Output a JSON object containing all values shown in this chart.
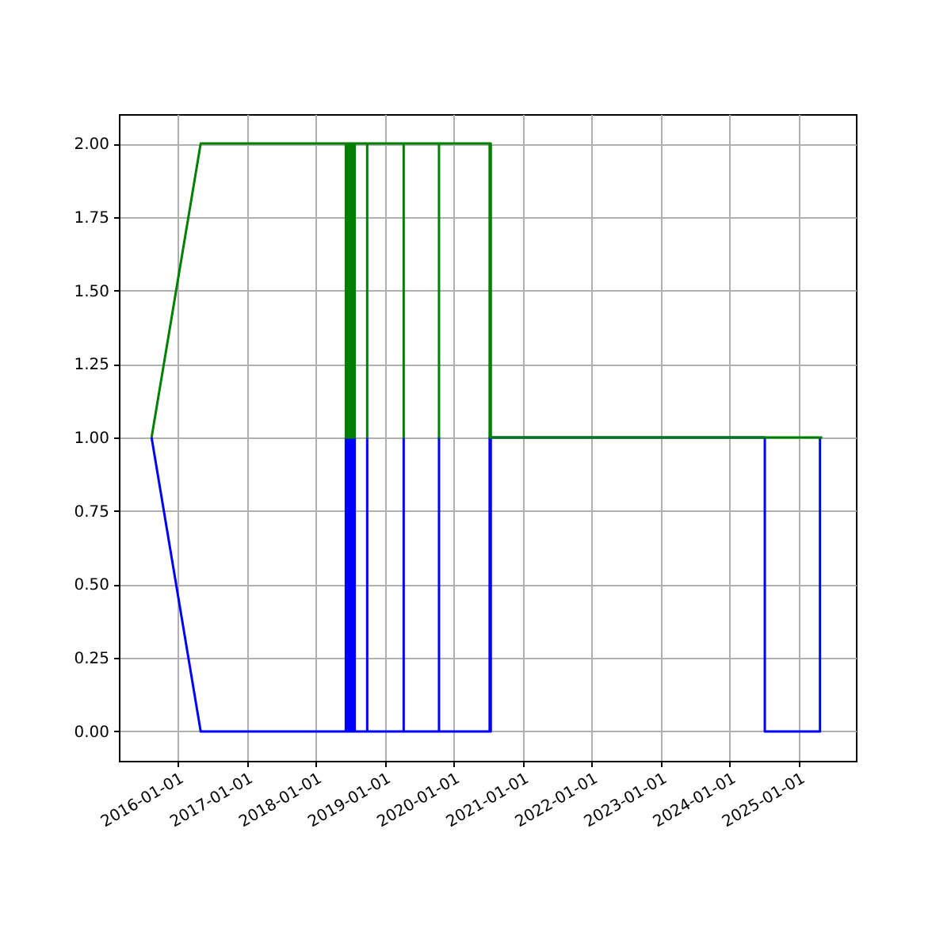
{
  "chart_data": {
    "type": "line",
    "xlim": [
      "2015-02-25",
      "2025-10-30"
    ],
    "ylim": [
      -0.1,
      2.1
    ],
    "xticks": [
      "2016-01-01",
      "2017-01-01",
      "2018-01-01",
      "2019-01-01",
      "2020-01-01",
      "2021-01-01",
      "2022-01-01",
      "2023-01-01",
      "2024-01-01",
      "2025-01-01"
    ],
    "yticks": [
      {
        "value": 0,
        "label": "0.00"
      },
      {
        "value": 0.25,
        "label": "0.25"
      },
      {
        "value": 0.5,
        "label": "0.50"
      },
      {
        "value": 0.75,
        "label": "0.75"
      },
      {
        "value": 1,
        "label": "1.00"
      },
      {
        "value": 1.25,
        "label": "1.25"
      },
      {
        "value": 1.5,
        "label": "1.50"
      },
      {
        "value": 1.75,
        "label": "1.75"
      },
      {
        "value": 2,
        "label": "2.00"
      }
    ],
    "grid": true,
    "series": [
      {
        "color": "#0000ff",
        "x": [
          "2015-08-17",
          "2016-05-03",
          "2018-06-10",
          "2018-06-10",
          "2018-06-10",
          "2018-06-17",
          "2018-06-17",
          "2018-06-17",
          "2018-06-24",
          "2018-06-24",
          "2018-06-24",
          "2018-07-01",
          "2018-07-01",
          "2018-07-01",
          "2018-07-08",
          "2018-07-08",
          "2018-07-08",
          "2018-07-15",
          "2018-07-15",
          "2018-07-15",
          "2018-07-22",
          "2018-07-22",
          "2018-07-22",
          "2018-07-27",
          "2018-07-27",
          "2018-07-27",
          "2018-10-01",
          "2018-10-01",
          "2018-10-01",
          "2019-04-12",
          "2019-04-12",
          "2019-04-12",
          "2019-10-16",
          "2019-10-16",
          "2019-10-16",
          "2020-07-10",
          "2020-07-10",
          "2020-07-10",
          "2020-07-13",
          "2020-07-13",
          "2020-07-13",
          "2020-07-16",
          "2020-07-16",
          "2024-07-05",
          "2024-07-05",
          "2025-04-23",
          "2025-04-23"
        ],
        "values": [
          1,
          0,
          0,
          1,
          0,
          0,
          1,
          0,
          0,
          1,
          0,
          0,
          1,
          0,
          0,
          1,
          0,
          0,
          1,
          0,
          0,
          1,
          0,
          0,
          1,
          0,
          0,
          1,
          0,
          0,
          1,
          0,
          0,
          1,
          0,
          0,
          1,
          0,
          0,
          1,
          0,
          0,
          1,
          1,
          0,
          0,
          1
        ]
      },
      {
        "color": "#008000",
        "x": [
          "2015-08-17",
          "2016-05-03",
          "2018-06-10",
          "2018-06-10",
          "2018-06-10",
          "2018-06-17",
          "2018-06-17",
          "2018-06-17",
          "2018-06-24",
          "2018-06-24",
          "2018-06-24",
          "2018-07-01",
          "2018-07-01",
          "2018-07-01",
          "2018-07-08",
          "2018-07-08",
          "2018-07-08",
          "2018-07-15",
          "2018-07-15",
          "2018-07-15",
          "2018-07-22",
          "2018-07-22",
          "2018-07-22",
          "2018-07-27",
          "2018-07-27",
          "2018-07-27",
          "2018-10-01",
          "2018-10-01",
          "2018-10-01",
          "2019-04-12",
          "2019-04-12",
          "2019-04-12",
          "2019-10-16",
          "2019-10-16",
          "2019-10-16",
          "2020-07-10",
          "2020-07-10",
          "2020-07-10",
          "2020-07-13",
          "2020-07-13",
          "2020-07-13",
          "2020-07-16",
          "2020-07-16",
          "2025-05-05"
        ],
        "values": [
          1,
          2,
          2,
          1,
          2,
          2,
          1,
          2,
          2,
          1,
          2,
          2,
          1,
          2,
          2,
          1,
          2,
          2,
          1,
          2,
          2,
          1,
          2,
          2,
          1,
          2,
          2,
          1,
          2,
          2,
          1,
          2,
          2,
          1,
          2,
          2,
          1,
          2,
          2,
          1,
          2,
          2,
          1,
          1
        ]
      }
    ]
  }
}
